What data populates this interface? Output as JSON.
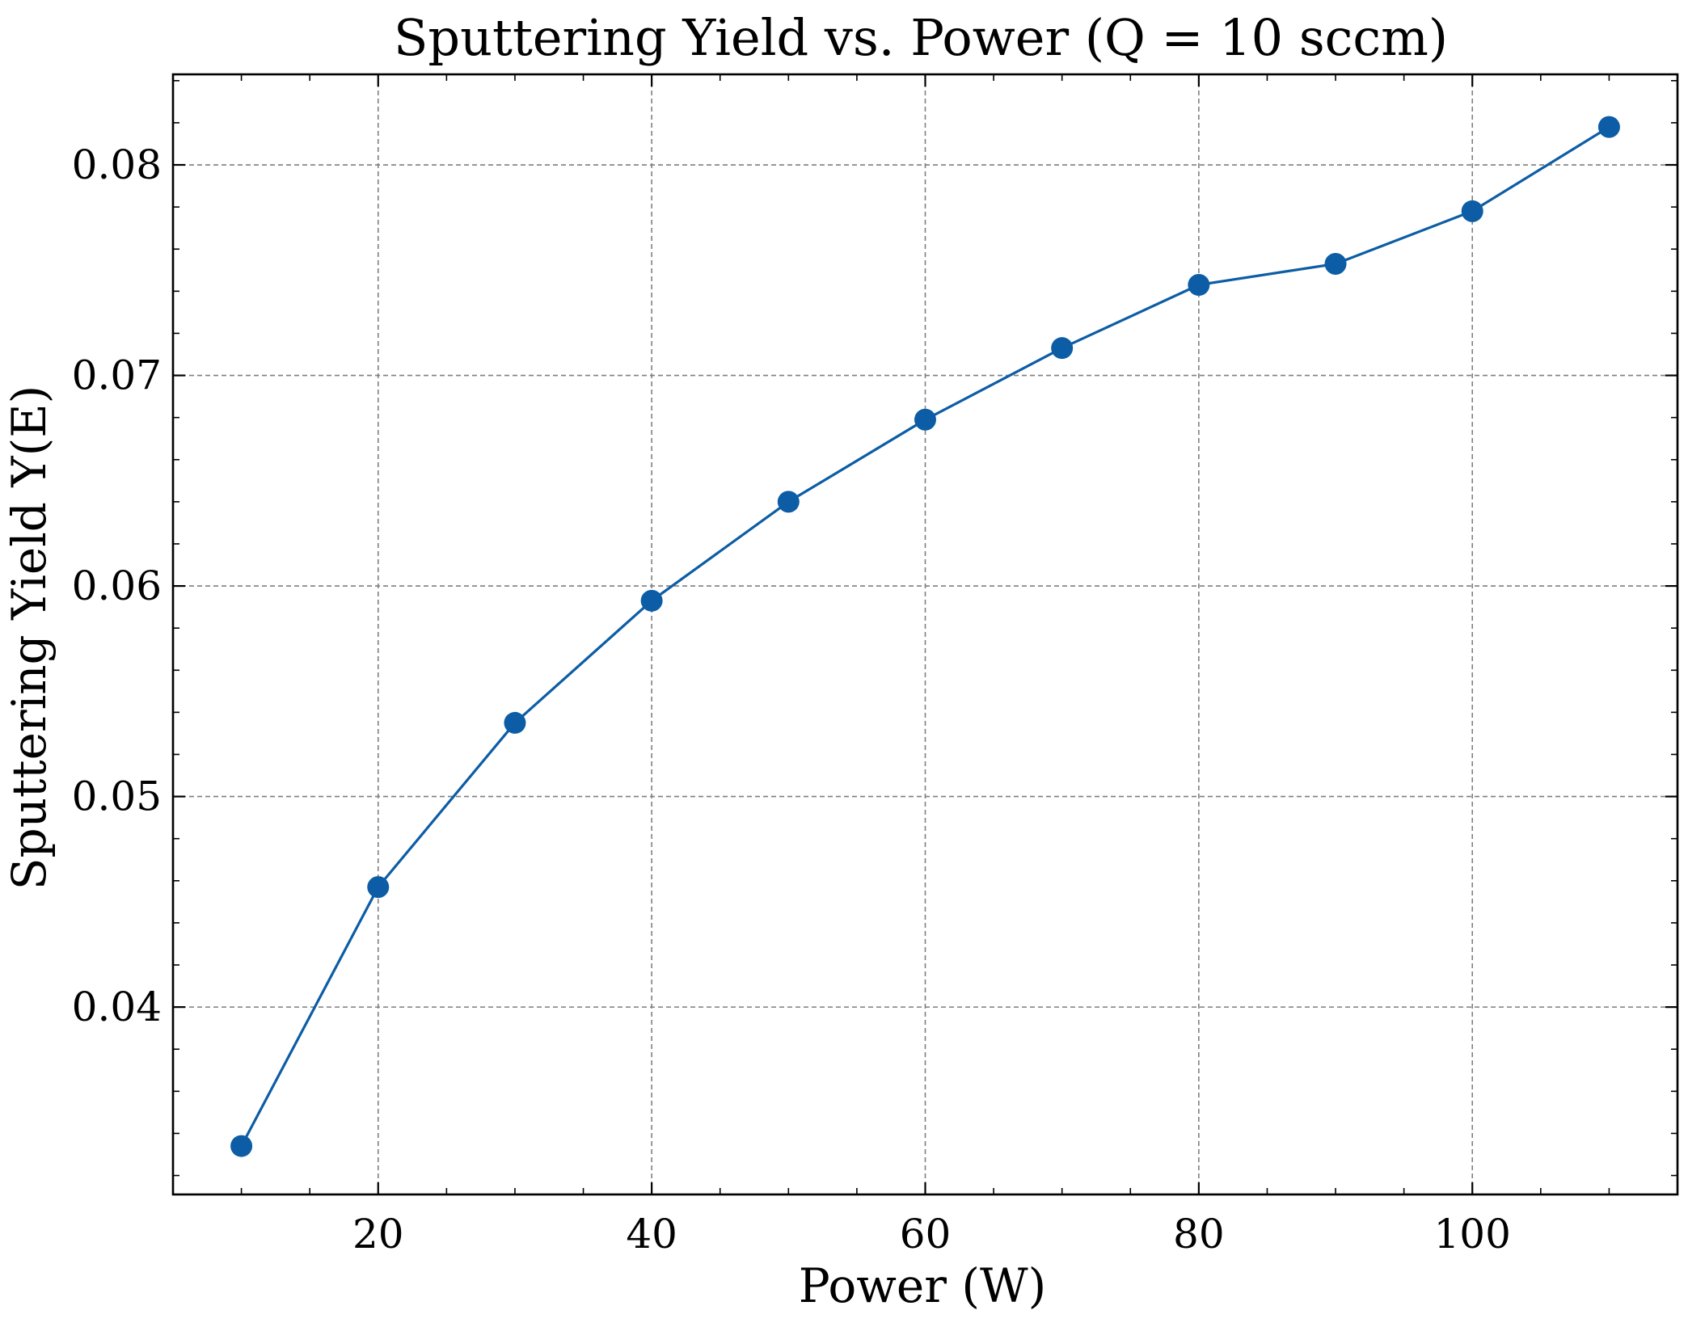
{
  "chart_data": {
    "type": "line",
    "title": "Sputtering Yield vs. Power (Q = 10 sccm)",
    "xlabel": "Power (W)",
    "ylabel": "Sputtering Yield Y(E)",
    "x": [
      10,
      20,
      30,
      40,
      50,
      60,
      70,
      80,
      90,
      100,
      110
    ],
    "series": [
      {
        "values": [
          0.0334,
          0.0457,
          0.0535,
          0.0593,
          0.064,
          0.0679,
          0.0713,
          0.0743,
          0.0753,
          0.0778,
          0.0818
        ],
        "color": "#0c5da5",
        "marker": "circle"
      }
    ],
    "xlim": [
      5,
      115
    ],
    "ylim": [
      0.0311,
      0.0843
    ],
    "xticks": [
      20,
      40,
      60,
      80,
      100
    ],
    "xtick_labels": [
      "20",
      "40",
      "60",
      "80",
      "100"
    ],
    "yticks": [
      0.04,
      0.05,
      0.06,
      0.07,
      0.08
    ],
    "ytick_labels": [
      "0.04",
      "0.05",
      "0.06",
      "0.07",
      "0.08"
    ],
    "grid": true,
    "grid_style": "dashed"
  }
}
